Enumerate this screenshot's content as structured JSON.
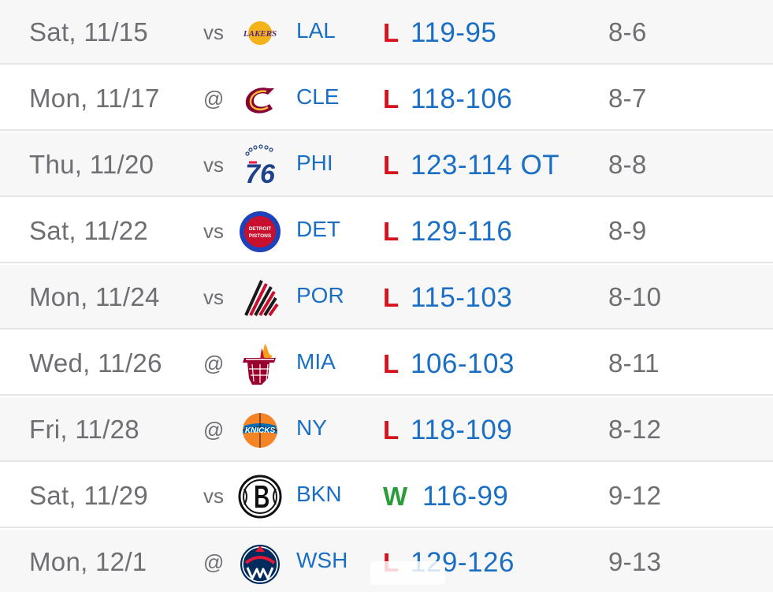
{
  "games": [
    {
      "date": "Sat, 11/15",
      "home_away": "vs",
      "team": "LAL",
      "logo_icon": "lakers-logo-icon",
      "result": "L",
      "score": "119-95",
      "record": "8-6"
    },
    {
      "date": "Mon, 11/17",
      "home_away": "@",
      "team": "CLE",
      "logo_icon": "cavaliers-logo-icon",
      "result": "L",
      "score": "118-106",
      "record": "8-7"
    },
    {
      "date": "Thu, 11/20",
      "home_away": "vs",
      "team": "PHI",
      "logo_icon": "76ers-logo-icon",
      "result": "L",
      "score": "123-114 OT",
      "record": "8-8"
    },
    {
      "date": "Sat, 11/22",
      "home_away": "vs",
      "team": "DET",
      "logo_icon": "pistons-logo-icon",
      "result": "L",
      "score": "129-116",
      "record": "8-9"
    },
    {
      "date": "Mon, 11/24",
      "home_away": "vs",
      "team": "POR",
      "logo_icon": "trail-blazers-logo-icon",
      "result": "L",
      "score": "115-103",
      "record": "8-10"
    },
    {
      "date": "Wed, 11/26",
      "home_away": "@",
      "team": "MIA",
      "logo_icon": "heat-logo-icon",
      "result": "L",
      "score": "106-103",
      "record": "8-11"
    },
    {
      "date": "Fri, 11/28",
      "home_away": "@",
      "team": "NY",
      "logo_icon": "knicks-logo-icon",
      "result": "L",
      "score": "118-109",
      "record": "8-12"
    },
    {
      "date": "Sat, 11/29",
      "home_away": "vs",
      "team": "BKN",
      "logo_icon": "nets-logo-icon",
      "result": "W",
      "score": "116-99",
      "record": "9-12"
    },
    {
      "date": "Mon, 12/1",
      "home_away": "@",
      "team": "WSH",
      "logo_icon": "wizards-logo-icon",
      "result": "L",
      "score": "129-126",
      "record": "9-13"
    }
  ],
  "colors": {
    "loss": "#d5121c",
    "win": "#2a9d3a",
    "link": "#1a6fc4",
    "muted_text": "#6e6e73",
    "row_shaded": "#f7f7f8",
    "divider": "#e6e6e9"
  },
  "logo_text": {
    "lakers": "LAKERS",
    "pistons_top": "DETROIT",
    "pistons_bottom": "PISTONS",
    "knicks": "KNICKS",
    "sixers": "76"
  }
}
